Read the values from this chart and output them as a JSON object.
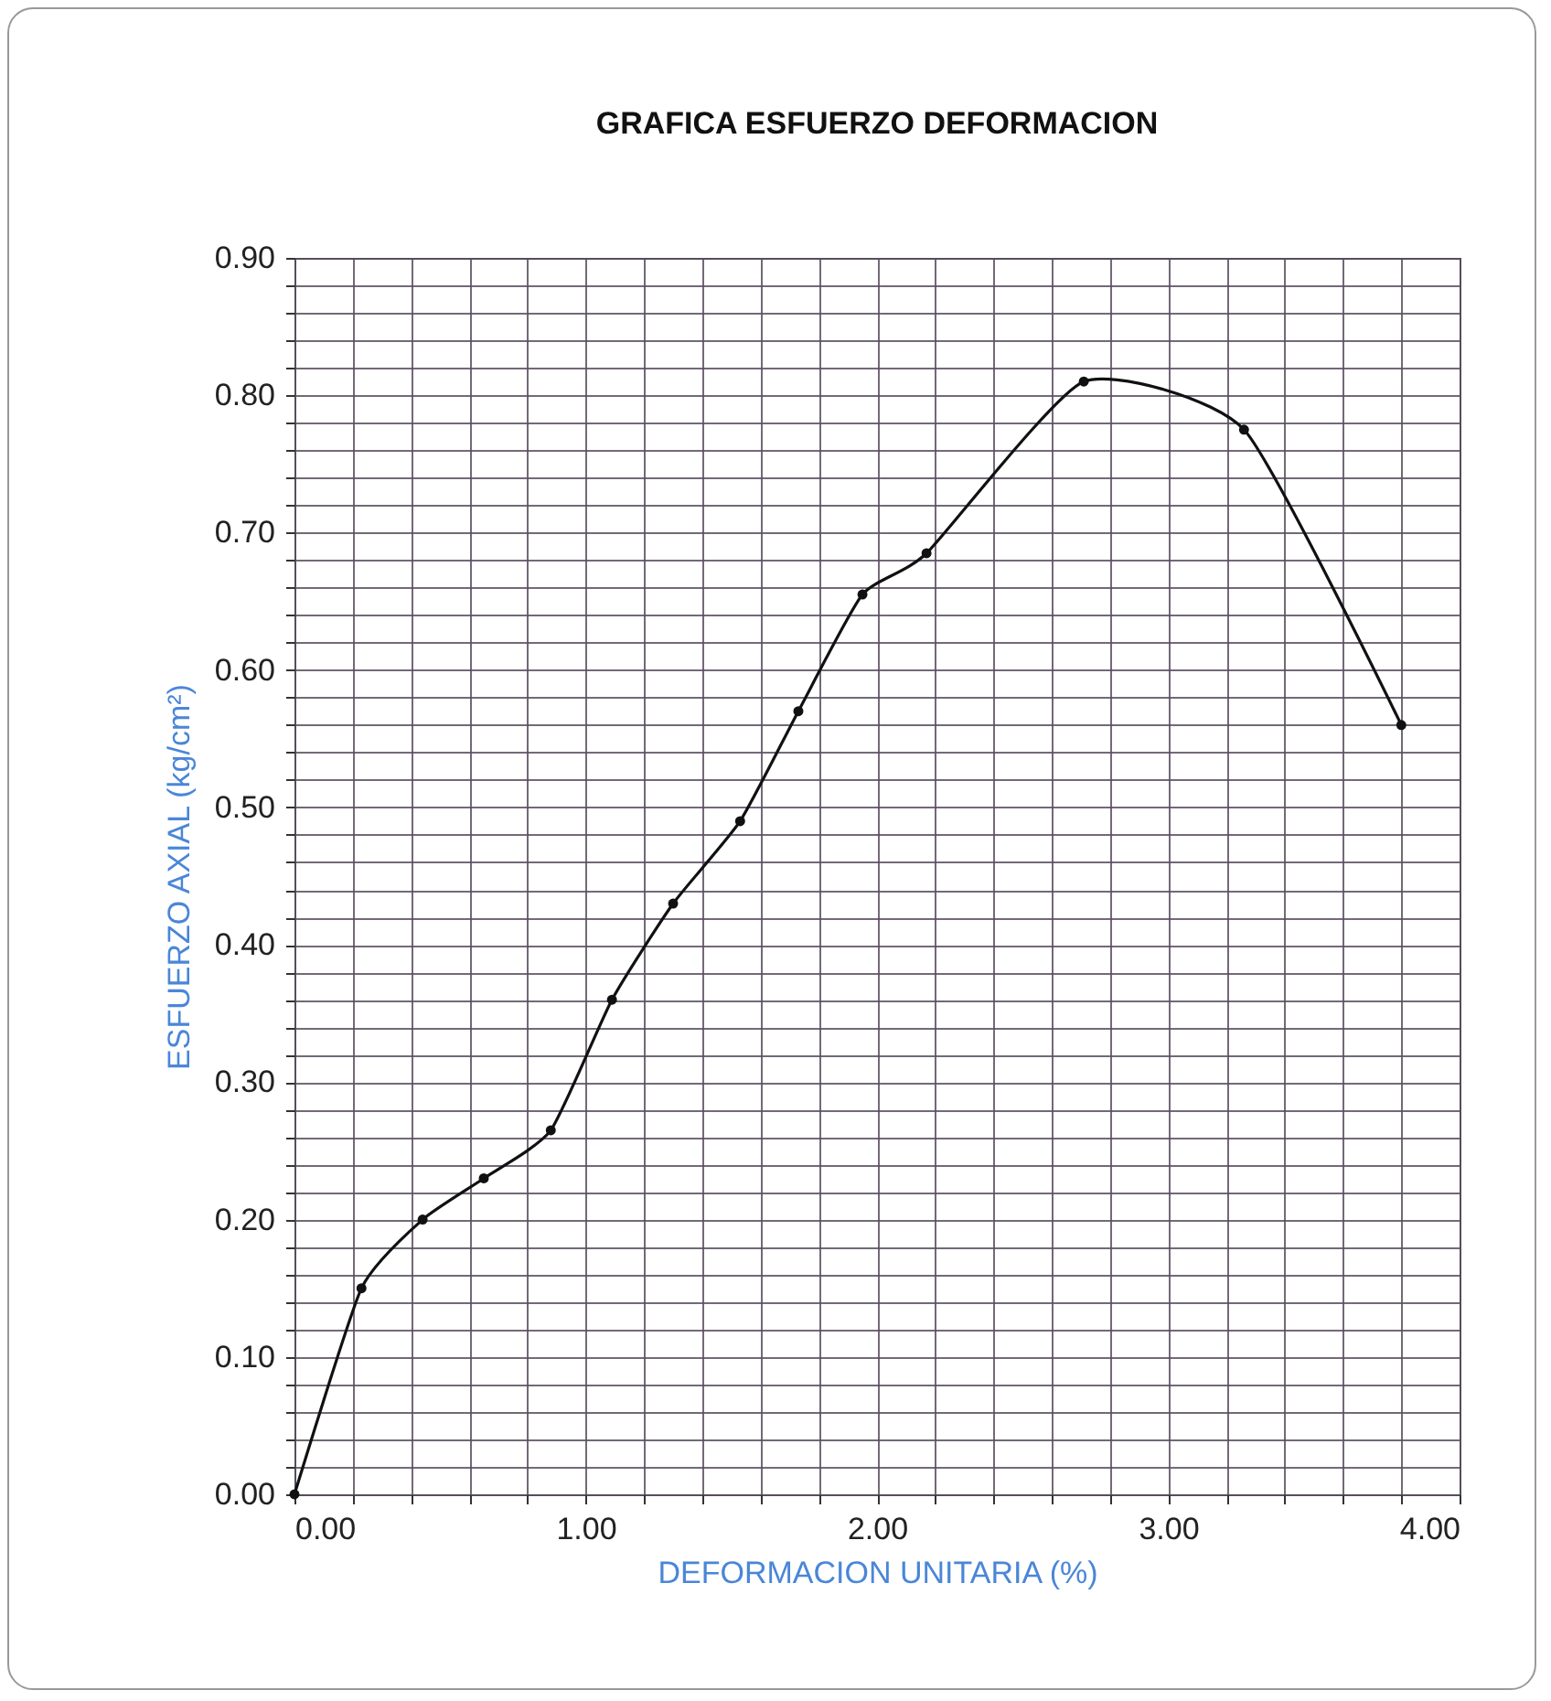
{
  "chart_data": {
    "type": "line",
    "title": "GRAFICA ESFUERZO DEFORMACION",
    "xlabel": "DEFORMACION UNITARIA (%)",
    "ylabel": "ESFUERZO AXIAL (kg/cm²)",
    "x": [
      0,
      0.23,
      0.44,
      0.65,
      0.88,
      1.09,
      1.3,
      1.53,
      1.73,
      1.95,
      2.17,
      2.71,
      3.26,
      3.8
    ],
    "series": [
      {
        "color": "#111111",
        "values": [
          0,
          0.15,
          0.2,
          0.23,
          0.265,
          0.36,
          0.43,
          0.49,
          0.57,
          0.655,
          0.685,
          0.81,
          0.775,
          0.56
        ]
      }
    ],
    "xlim": [
      0,
      4
    ],
    "ylim": [
      0,
      0.9
    ],
    "xticks": [
      {
        "value": 0,
        "label": "0.00"
      },
      {
        "value": 0.2,
        "label": null
      },
      {
        "value": 0.4,
        "label": null
      },
      {
        "value": 0.6,
        "label": null
      },
      {
        "value": 0.8,
        "label": null
      },
      {
        "value": 1,
        "label": "1.00"
      },
      {
        "value": 1.2,
        "label": null
      },
      {
        "value": 1.4,
        "label": null
      },
      {
        "value": 1.6,
        "label": null
      },
      {
        "value": 1.8,
        "label": null
      },
      {
        "value": 2,
        "label": "2.00"
      },
      {
        "value": 2.2,
        "label": null
      },
      {
        "value": 2.4,
        "label": null
      },
      {
        "value": 2.6,
        "label": null
      },
      {
        "value": 2.8,
        "label": null
      },
      {
        "value": 3,
        "label": "3.00"
      },
      {
        "value": 3.2,
        "label": null
      },
      {
        "value": 3.4,
        "label": null
      },
      {
        "value": 3.6,
        "label": null
      },
      {
        "value": 3.8,
        "label": null
      },
      {
        "value": 4,
        "label": "4.00"
      }
    ],
    "yticks": [
      {
        "value": 0,
        "label": "0.00"
      },
      {
        "value": 0.02,
        "label": null
      },
      {
        "value": 0.04,
        "label": null
      },
      {
        "value": 0.06,
        "label": null
      },
      {
        "value": 0.08,
        "label": null
      },
      {
        "value": 0.1,
        "label": "0.10"
      },
      {
        "value": 0.12,
        "label": null
      },
      {
        "value": 0.14,
        "label": null
      },
      {
        "value": 0.16,
        "label": null
      },
      {
        "value": 0.18,
        "label": null
      },
      {
        "value": 0.2,
        "label": "0.20"
      },
      {
        "value": 0.22,
        "label": null
      },
      {
        "value": 0.24,
        "label": null
      },
      {
        "value": 0.26,
        "label": null
      },
      {
        "value": 0.28,
        "label": null
      },
      {
        "value": 0.3,
        "label": "0.30"
      },
      {
        "value": 0.32,
        "label": null
      },
      {
        "value": 0.34,
        "label": null
      },
      {
        "value": 0.36,
        "label": null
      },
      {
        "value": 0.38,
        "label": null
      },
      {
        "value": 0.4,
        "label": "0.40"
      },
      {
        "value": 0.42,
        "label": null
      },
      {
        "value": 0.44,
        "label": null
      },
      {
        "value": 0.46,
        "label": null
      },
      {
        "value": 0.48,
        "label": null
      },
      {
        "value": 0.5,
        "label": "0.50"
      },
      {
        "value": 0.52,
        "label": null
      },
      {
        "value": 0.54,
        "label": null
      },
      {
        "value": 0.56,
        "label": null
      },
      {
        "value": 0.58,
        "label": null
      },
      {
        "value": 0.6,
        "label": "0.60"
      },
      {
        "value": 0.62,
        "label": null
      },
      {
        "value": 0.64,
        "label": null
      },
      {
        "value": 0.66,
        "label": null
      },
      {
        "value": 0.68,
        "label": null
      },
      {
        "value": 0.7,
        "label": "0.70"
      },
      {
        "value": 0.72,
        "label": null
      },
      {
        "value": 0.74,
        "label": null
      },
      {
        "value": 0.76,
        "label": null
      },
      {
        "value": 0.78,
        "label": null
      },
      {
        "value": 0.8,
        "label": "0.80"
      },
      {
        "value": 0.82,
        "label": null
      },
      {
        "value": 0.84,
        "label": null
      },
      {
        "value": 0.86,
        "label": null
      },
      {
        "value": 0.88,
        "label": null
      },
      {
        "value": 0.9,
        "label": "0.90"
      }
    ],
    "grid": true,
    "legend": false,
    "marker": "circle",
    "line_style": "solid"
  }
}
